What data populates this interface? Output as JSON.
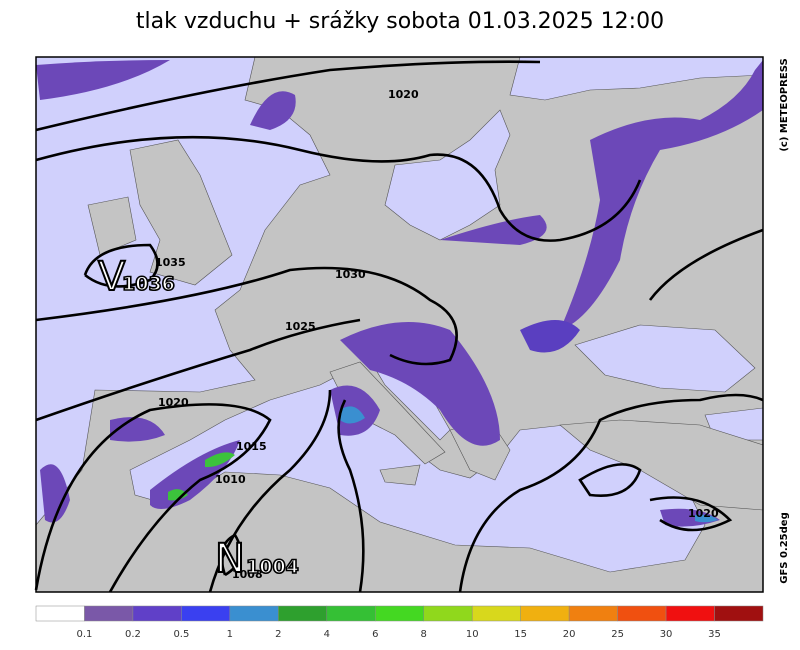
{
  "title": "tlak vzduchu + srážky  sobota 01.03.2025 12:00",
  "isobar_labels": [
    "1020",
    "1035",
    "1030",
    "1025",
    "1020",
    "1015",
    "1010",
    "1020",
    "1008"
  ],
  "pressure_centers": [
    {
      "symbol": "V",
      "value": "1036"
    },
    {
      "symbol": "N",
      "value": "1004"
    }
  ],
  "credits": {
    "copyright": "(c) METEOPRESS",
    "model": "GFS  0.25deg"
  },
  "legend": {
    "colors": [
      "#ffffff",
      "#7a58a8",
      "#6040c8",
      "#3a40f0",
      "#3a8fd0",
      "#2ea02e",
      "#35c035",
      "#44d822",
      "#90d81c",
      "#d8d81c",
      "#f0b010",
      "#f08010",
      "#f05010",
      "#f01010",
      "#a01010"
    ],
    "labels": [
      "0.1",
      "0.2",
      "0.5",
      "1",
      "2",
      "4",
      "6",
      "8",
      "10",
      "15",
      "20",
      "25",
      "30",
      "35"
    ]
  }
}
